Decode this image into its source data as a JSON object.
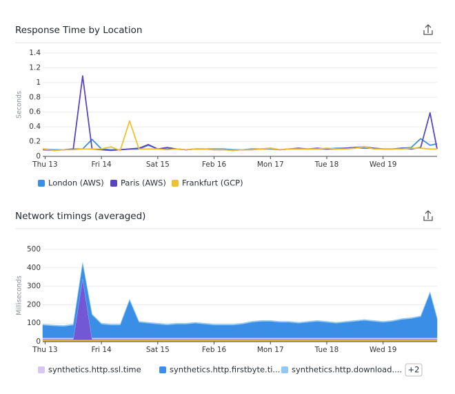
{
  "chart_data": [
    {
      "type": "line",
      "title": "Response Time by Location",
      "y_label": "Seconds",
      "x": [
        -1,
        4,
        8,
        12,
        16,
        20,
        24,
        28,
        32,
        36,
        40,
        44,
        48,
        52,
        56,
        60,
        64,
        68,
        72,
        76,
        80,
        84,
        88,
        92,
        96,
        100,
        104,
        108,
        112,
        116,
        120,
        124,
        128,
        132,
        136,
        140,
        144,
        148,
        152,
        156,
        160,
        164,
        167
      ],
      "xlim": [
        -1,
        167
      ],
      "xticks": [
        {
          "value": 0,
          "label": "Thu 13"
        },
        {
          "value": 24,
          "label": "Fri 14"
        },
        {
          "value": 48,
          "label": "Sat 15"
        },
        {
          "value": 72,
          "label": "Feb 16"
        },
        {
          "value": 96,
          "label": "Mon 17"
        },
        {
          "value": 120,
          "label": "Tue 18"
        },
        {
          "value": 144,
          "label": "Wed 19"
        }
      ],
      "ylim": [
        0,
        1.4
      ],
      "yticks": [
        0,
        0.2,
        0.4,
        0.6,
        0.8,
        1,
        1.2,
        1.4
      ],
      "grid": true,
      "series": [
        {
          "name": "London (AWS)",
          "color": "#3a8ee6",
          "values": [
            0.1,
            0.09,
            0.09,
            0.1,
            0.1,
            0.23,
            0.1,
            0.09,
            0.09,
            0.1,
            0.1,
            0.15,
            0.1,
            0.1,
            0.1,
            0.09,
            0.1,
            0.1,
            0.1,
            0.1,
            0.09,
            0.09,
            0.1,
            0.1,
            0.1,
            0.09,
            0.1,
            0.1,
            0.1,
            0.1,
            0.1,
            0.11,
            0.11,
            0.12,
            0.11,
            0.11,
            0.1,
            0.1,
            0.11,
            0.12,
            0.24,
            0.15,
            0.17
          ]
        },
        {
          "name": "Paris (AWS)",
          "color": "#5b44bd",
          "values": [
            0.09,
            0.08,
            0.09,
            0.1,
            1.09,
            0.1,
            0.09,
            0.08,
            0.09,
            0.1,
            0.11,
            0.16,
            0.1,
            0.12,
            0.1,
            0.09,
            0.1,
            0.1,
            0.09,
            0.09,
            0.08,
            0.09,
            0.09,
            0.1,
            0.11,
            0.09,
            0.1,
            0.11,
            0.1,
            0.11,
            0.1,
            0.1,
            0.11,
            0.12,
            0.13,
            0.11,
            0.1,
            0.1,
            0.11,
            0.1,
            0.12,
            0.59,
            0.1
          ]
        },
        {
          "name": "Frankfurt (GCP)",
          "color": "#f0c02f",
          "values": [
            0.1,
            0.08,
            0.09,
            0.09,
            0.1,
            0.1,
            0.1,
            0.13,
            0.08,
            0.48,
            0.1,
            0.1,
            0.1,
            0.09,
            0.1,
            0.09,
            0.1,
            0.1,
            0.09,
            0.09,
            0.08,
            0.09,
            0.09,
            0.1,
            0.11,
            0.09,
            0.1,
            0.1,
            0.1,
            0.1,
            0.11,
            0.1,
            0.1,
            0.11,
            0.13,
            0.1,
            0.1,
            0.1,
            0.1,
            0.11,
            0.11,
            0.1,
            0.1
          ]
        }
      ]
    },
    {
      "type": "area",
      "stacked": true,
      "title": "Network timings (averaged)",
      "y_label": "Milliseconds",
      "x": [
        -1,
        4,
        8,
        12,
        16,
        20,
        24,
        28,
        32,
        36,
        40,
        44,
        48,
        52,
        56,
        60,
        64,
        68,
        72,
        76,
        80,
        84,
        88,
        92,
        96,
        100,
        104,
        108,
        112,
        116,
        120,
        124,
        128,
        132,
        136,
        140,
        144,
        148,
        152,
        156,
        160,
        164,
        167
      ],
      "xlim": [
        -1,
        167
      ],
      "xticks": [
        {
          "value": 0,
          "label": "Thu 13"
        },
        {
          "value": 24,
          "label": "Fri 14"
        },
        {
          "value": 48,
          "label": "Sat 15"
        },
        {
          "value": 72,
          "label": "Feb 16"
        },
        {
          "value": 96,
          "label": "Mon 17"
        },
        {
          "value": 120,
          "label": "Tue 18"
        },
        {
          "value": 144,
          "label": "Wed 19"
        }
      ],
      "ylim": [
        0,
        500
      ],
      "yticks": [
        0,
        100,
        200,
        300,
        400,
        500
      ],
      "grid": true,
      "legend_more": "+2",
      "series": [
        {
          "color": "#f2c12e",
          "values": [
            10,
            10,
            10,
            10,
            10,
            10,
            10,
            10,
            10,
            10,
            10,
            10,
            10,
            10,
            10,
            10,
            10,
            10,
            10,
            10,
            10,
            10,
            10,
            10,
            10,
            10,
            10,
            10,
            10,
            10,
            10,
            10,
            10,
            10,
            10,
            10,
            10,
            10,
            10,
            10,
            10,
            10,
            10
          ]
        },
        {
          "color": "#7358d6",
          "values": [
            3,
            3,
            3,
            3,
            330,
            3,
            3,
            3,
            3,
            3,
            3,
            3,
            3,
            3,
            3,
            3,
            3,
            3,
            3,
            3,
            3,
            3,
            3,
            3,
            3,
            3,
            3,
            3,
            3,
            3,
            3,
            3,
            3,
            3,
            3,
            3,
            3,
            3,
            3,
            3,
            3,
            3,
            3
          ]
        },
        {
          "name": "synthetics.http.ssl.time",
          "color": "#d5c6f4",
          "values": [
            8,
            8,
            8,
            8,
            8,
            8,
            8,
            8,
            8,
            8,
            8,
            8,
            8,
            8,
            8,
            8,
            8,
            8,
            8,
            8,
            8,
            8,
            8,
            8,
            8,
            8,
            8,
            8,
            8,
            8,
            8,
            8,
            8,
            8,
            8,
            8,
            8,
            8,
            8,
            8,
            8,
            8,
            8
          ]
        },
        {
          "name": "synthetics.http.firstbyte.ti...",
          "color": "#3a8ee6",
          "values": [
            69,
            64,
            62,
            69,
            77,
            124,
            74,
            69,
            69,
            204,
            84,
            79,
            74,
            69,
            74,
            74,
            79,
            74,
            69,
            69,
            69,
            74,
            84,
            89,
            89,
            84,
            84,
            79,
            84,
            89,
            84,
            79,
            84,
            89,
            94,
            89,
            84,
            89,
            99,
            104,
            114,
            244,
            104
          ]
        },
        {
          "name": "synthetics.http.download....",
          "color": "#92c8f2",
          "values": [
            5,
            5,
            5,
            5,
            5,
            5,
            5,
            5,
            5,
            5,
            5,
            5,
            5,
            5,
            5,
            5,
            5,
            5,
            5,
            5,
            5,
            5,
            5,
            5,
            5,
            5,
            5,
            5,
            5,
            5,
            5,
            5,
            5,
            5,
            5,
            5,
            5,
            5,
            5,
            5,
            5,
            5,
            5
          ]
        }
      ]
    }
  ]
}
